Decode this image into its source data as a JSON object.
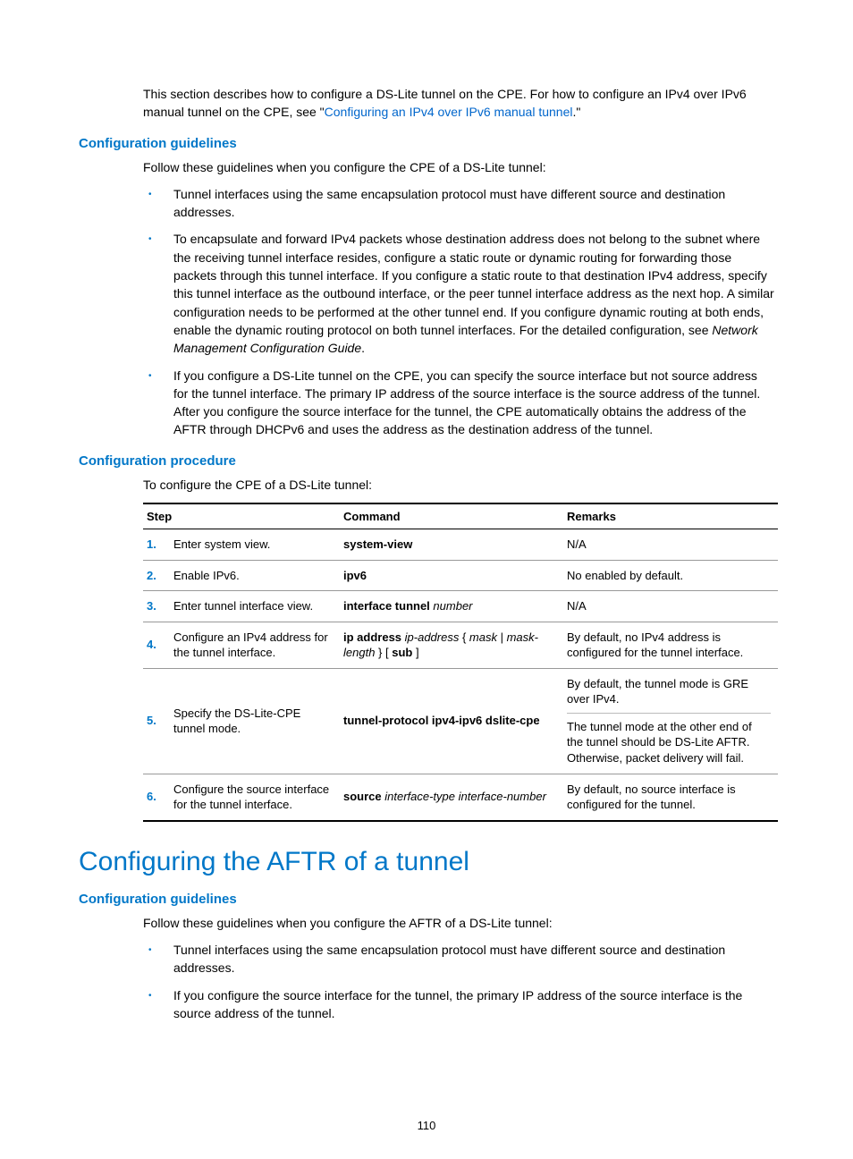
{
  "intro": {
    "text_before_link": "This section describes how to configure a DS-Lite tunnel on the CPE. For how to configure an IPv4 over IPv6 manual tunnel on the CPE, see \"",
    "link_text": "Configuring an IPv4 over IPv6 manual tunnel",
    "text_after_link": ".\""
  },
  "section1": {
    "heading": "Configuration guidelines",
    "lead": "Follow these guidelines when you configure the CPE of a DS-Lite tunnel:",
    "bullets": [
      {
        "plain": "Tunnel interfaces using the same encapsulation protocol must have different source and destination addresses."
      },
      {
        "plain_before_italic": "To encapsulate and forward IPv4 packets whose destination address does not belong to the subnet where the receiving tunnel interface resides, configure a static route or dynamic routing for forwarding those packets through this tunnel interface. If you configure a static route to that destination IPv4 address, specify this tunnel interface as the outbound interface, or the peer tunnel interface address as the next hop. A similar configuration needs to be performed at the other tunnel end. If you configure dynamic routing at both ends, enable the dynamic routing protocol on both tunnel interfaces. For the detailed configuration, see ",
        "italic": "Network Management Configuration Guide",
        "after_italic": "."
      },
      {
        "plain": "If you configure a DS-Lite tunnel on the CPE, you can specify the source interface but not source address for the tunnel interface. The primary IP address of the source interface is the source address of the tunnel. After you configure the source interface for the tunnel, the CPE automatically obtains the address of the AFTR through DHCPv6 and uses the address as the destination address of the tunnel."
      }
    ]
  },
  "section2": {
    "heading": "Configuration procedure",
    "lead": "To configure the CPE of a DS-Lite tunnel:",
    "table": {
      "headers": {
        "step": "Step",
        "command": "Command",
        "remarks": "Remarks"
      },
      "rows": [
        {
          "num": "1.",
          "step": "Enter system view.",
          "cmd_bold": "system-view",
          "cmd_rest": "",
          "remarks": "N/A"
        },
        {
          "num": "2.",
          "step": "Enable IPv6.",
          "cmd_bold": "ipv6",
          "cmd_rest": "",
          "remarks": "No enabled by default."
        },
        {
          "num": "3.",
          "step": "Enter tunnel interface view.",
          "cmd_bold": "interface tunnel ",
          "cmd_italic": "number",
          "remarks": "N/A"
        },
        {
          "num": "4.",
          "step": "Configure an IPv4 address for the tunnel interface.",
          "cmd_parts": [
            {
              "b": "ip address "
            },
            {
              "i": "ip-address "
            },
            {
              "p": "{ "
            },
            {
              "i": "mask "
            },
            {
              "p": "| "
            },
            {
              "i": "mask-length "
            },
            {
              "p": "} [ "
            },
            {
              "b": "sub"
            },
            {
              "p": " ]"
            }
          ],
          "remarks": "By default, no IPv4 address is configured for the tunnel interface."
        },
        {
          "num": "5.",
          "step": "Specify the DS-Lite-CPE tunnel mode.",
          "cmd_bold": "tunnel-protocol ipv4-ipv6 dslite-cpe",
          "remarks_split": {
            "top": "By default, the tunnel mode is GRE over IPv4.",
            "bottom": "The tunnel mode at the other end of the tunnel should be DS-Lite AFTR. Otherwise, packet delivery will fail."
          }
        },
        {
          "num": "6.",
          "step": "Configure the source interface for the tunnel interface.",
          "cmd_parts": [
            {
              "b": "source "
            },
            {
              "i": "interface-type interface-number"
            }
          ],
          "remarks": "By default, no source interface is configured for the tunnel."
        }
      ]
    }
  },
  "section3": {
    "title": "Configuring the AFTR of a tunnel",
    "heading": "Configuration guidelines",
    "lead": "Follow these guidelines when you configure the AFTR of a DS-Lite tunnel:",
    "bullets": [
      "Tunnel interfaces using the same encapsulation protocol must have different source and destination addresses.",
      "If you configure the source interface for the tunnel, the primary IP address of the source interface is the source address of the tunnel."
    ]
  },
  "page_number": "110"
}
